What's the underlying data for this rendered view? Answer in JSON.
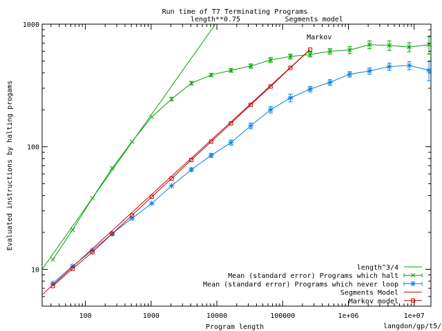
{
  "chart_data": {
    "type": "line",
    "title": "Run time of T7 Terminating Programs",
    "xlabel": "Program length",
    "ylabel": "Evaluated instructions by halting progams",
    "xscale": "log",
    "yscale": "log",
    "xlim": [
      22,
      18000000
    ],
    "ylim": [
      5,
      1000
    ],
    "grid": false,
    "legend_position": "bottom-right",
    "footer": "langdon/gp/t5/",
    "x_ticks": [
      {
        "value": 100,
        "label": "100"
      },
      {
        "value": 1000,
        "label": "1000"
      },
      {
        "value": 10000,
        "label": "10000"
      },
      {
        "value": 100000,
        "label": "100000"
      },
      {
        "value": 1000000,
        "label": "1e+06"
      },
      {
        "value": 10000000,
        "label": "1e+07"
      }
    ],
    "y_ticks": [
      {
        "value": 10,
        "label": "10"
      },
      {
        "value": 100,
        "label": "100"
      },
      {
        "value": 1000,
        "label": "1000"
      }
    ],
    "annotations": [
      {
        "text": "length**0.75",
        "x": 9500,
        "y": 1000
      },
      {
        "text": "Segments model",
        "x": 300000,
        "y": 1000
      },
      {
        "text": "Markov",
        "x": 360000,
        "y": 750
      }
    ],
    "series": [
      {
        "name": "length^3/4",
        "kind": "line",
        "color": "#00a000",
        "x": [
          22,
          9500
        ],
        "y": [
          10,
          1000
        ]
      },
      {
        "name": "Mean (standard error) Programs which halt",
        "kind": "errorbar",
        "color": "#00a000",
        "marker": "x",
        "x": [
          32,
          64,
          128,
          256,
          512,
          1024,
          2048,
          4096,
          8192,
          16384,
          32768,
          65536,
          131072,
          262144,
          524288,
          1048576,
          2097152,
          4194304,
          8388608,
          16777216
        ],
        "y": [
          12,
          21,
          38,
          67,
          110,
          175,
          245,
          330,
          385,
          420,
          455,
          510,
          545,
          565,
          600,
          615,
          680,
          670,
          650,
          680
        ],
        "err": [
          0,
          0,
          0,
          0,
          0,
          0,
          8,
          10,
          12,
          15,
          18,
          25,
          25,
          25,
          30,
          40,
          50,
          60,
          55,
          110
        ]
      },
      {
        "name": "Mean (standard error) Programs which never loop",
        "kind": "errorbar",
        "color": "#0080e0",
        "marker": "*",
        "x": [
          32,
          64,
          128,
          256,
          512,
          1024,
          2048,
          4096,
          8192,
          16384,
          32768,
          65536,
          131072,
          262144,
          524288,
          1048576,
          2097152,
          4194304,
          8388608,
          16777216
        ],
        "y": [
          7.7,
          10.6,
          14.3,
          19.5,
          26,
          34.5,
          48,
          65,
          85,
          108,
          148,
          200,
          250,
          295,
          335,
          390,
          415,
          450,
          460,
          420
        ],
        "err": [
          0,
          0,
          0,
          0,
          0,
          0,
          0,
          2,
          3,
          5,
          8,
          12,
          18,
          15,
          18,
          20,
          25,
          30,
          35,
          75
        ]
      },
      {
        "name": "Segments Model",
        "kind": "line",
        "color": "#c00000",
        "x": [
          22,
          260000
        ],
        "y": [
          6.2,
          620
        ]
      },
      {
        "name": "Markov model",
        "kind": "line-points",
        "color": "#c00000",
        "marker": "square",
        "x": [
          32,
          64,
          128,
          256,
          512,
          1024,
          2048,
          4096,
          8192,
          16384,
          32768,
          65536,
          131072,
          262144
        ],
        "y": [
          7.3,
          10.1,
          13.8,
          19.5,
          27.5,
          39,
          55,
          78,
          110,
          155,
          220,
          310,
          440,
          620
        ]
      }
    ]
  }
}
